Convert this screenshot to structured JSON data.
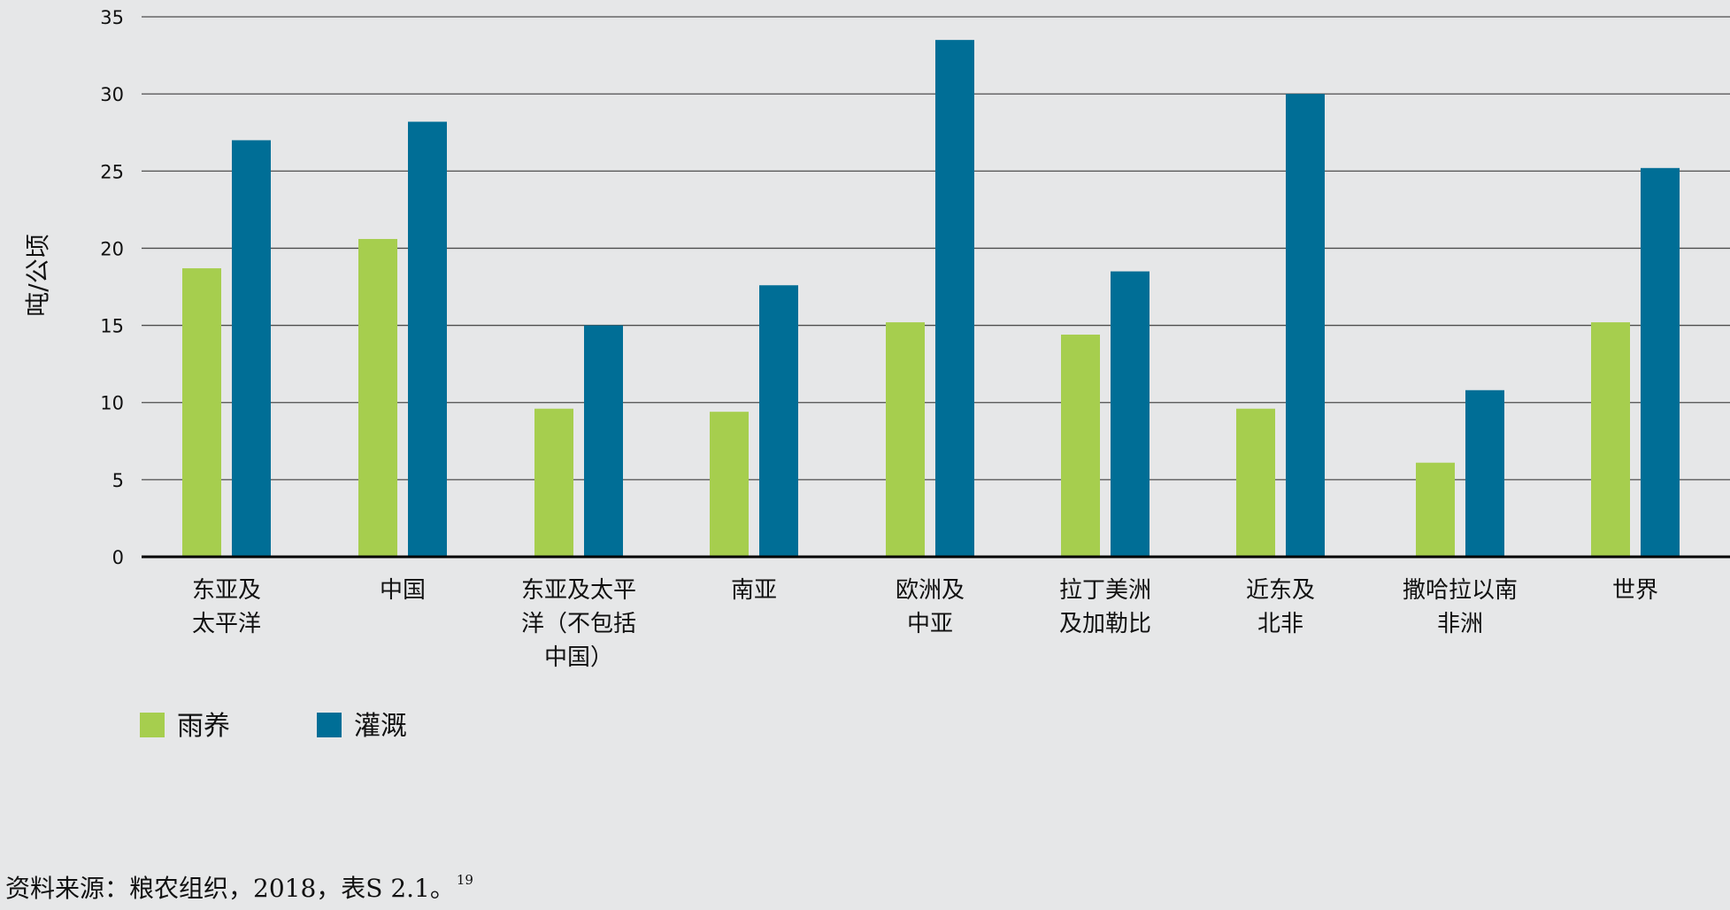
{
  "chart_data": {
    "type": "bar",
    "ylabel": "吨/公顷",
    "ylim": [
      0,
      35
    ],
    "yticks": [
      0,
      5,
      10,
      15,
      20,
      25,
      30,
      35
    ],
    "grid": true,
    "legend_position": "bottom-left",
    "categories": [
      [
        "东亚及",
        "太平洋"
      ],
      [
        "中国"
      ],
      [
        "东亚及太平",
        "洋（不包括",
        "中国）"
      ],
      [
        "南亚"
      ],
      [
        "欧洲及",
        "中亚"
      ],
      [
        "拉丁美洲",
        "及加勒比"
      ],
      [
        "近东及",
        "北非"
      ],
      [
        "撒哈拉以南",
        "非洲"
      ],
      [
        "世界"
      ]
    ],
    "series": [
      {
        "name": "雨养",
        "color": "#a6ce4e",
        "values": [
          18.7,
          20.6,
          9.6,
          9.4,
          15.2,
          14.4,
          9.6,
          6.1,
          15.2
        ]
      },
      {
        "name": "灌溉",
        "color": "#006e96",
        "values": [
          27.0,
          28.2,
          15.0,
          17.6,
          33.5,
          18.5,
          30.0,
          10.8,
          25.2
        ]
      }
    ]
  },
  "source": {
    "text": "资料来源：粮农组织，2018，表S 2.1。",
    "note_ref": "19"
  }
}
